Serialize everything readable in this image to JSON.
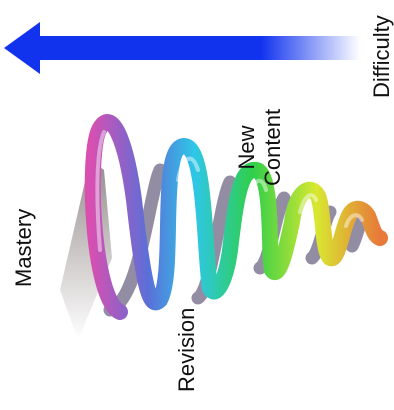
{
  "diagram": {
    "labels": {
      "difficulty": "Difficulty",
      "mastery": "Mastery",
      "new_content": "New\nContent",
      "revision": "Revision"
    },
    "arrow": {
      "direction": "left",
      "color_strong": "#1133ee",
      "color_fade": "#ffffff"
    },
    "spiral": {
      "loops": 5,
      "colors": [
        "#d94fb0",
        "#5b6fd8",
        "#2ec7e8",
        "#2fcf4a",
        "#d8e830",
        "#e8793a"
      ]
    }
  }
}
